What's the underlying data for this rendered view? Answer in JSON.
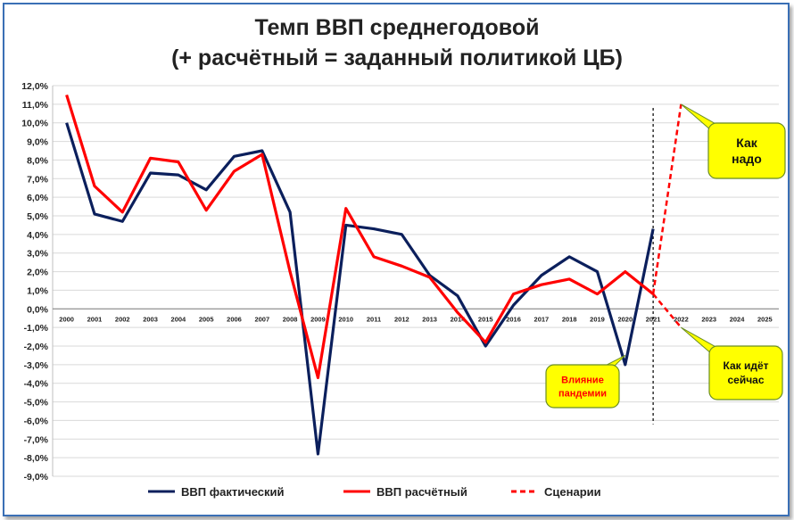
{
  "chart_data": {
    "type": "line",
    "title": "Темп ВВП среднегодовой",
    "subtitle": "(+ расчётный = заданный политикой ЦБ)",
    "x": [
      "2000",
      "2001",
      "2002",
      "2003",
      "2004",
      "2005",
      "2006",
      "2007",
      "2008",
      "2009",
      "2010",
      "2011",
      "2012",
      "2013",
      "2014",
      "2015",
      "2016",
      "2017",
      "2018",
      "2019",
      "2020",
      "2021",
      "2022",
      "2023",
      "2024",
      "2025"
    ],
    "ylim": [
      -9,
      12
    ],
    "yticks": [
      "12,0%",
      "11,0%",
      "10,0%",
      "9,0%",
      "8,0%",
      "7,0%",
      "6,0%",
      "5,0%",
      "4,0%",
      "3,0%",
      "2,0%",
      "1,0%",
      "0,0%",
      "-1,0%",
      "-2,0%",
      "-3,0%",
      "-4,0%",
      "-5,0%",
      "-6,0%",
      "-7,0%",
      "-8,0%",
      "-9,0%"
    ],
    "grid": true,
    "legend_position": "bottom",
    "series": [
      {
        "name": "ВВП фактический",
        "color": "#0b1f5c",
        "style": "solid",
        "x": [
          "2000",
          "2001",
          "2002",
          "2003",
          "2004",
          "2005",
          "2006",
          "2007",
          "2008",
          "2009",
          "2010",
          "2011",
          "2012",
          "2013",
          "2014",
          "2015",
          "2016",
          "2017",
          "2018",
          "2019",
          "2020",
          "2021"
        ],
        "values": [
          10.0,
          5.1,
          4.7,
          7.3,
          7.2,
          6.4,
          8.2,
          8.5,
          5.2,
          -7.8,
          4.5,
          4.3,
          4.0,
          1.8,
          0.7,
          -2.0,
          0.2,
          1.8,
          2.8,
          2.0,
          -3.0,
          4.3
        ]
      },
      {
        "name": "ВВП расчётный",
        "color": "#ff0000",
        "style": "solid",
        "x": [
          "2000",
          "2001",
          "2002",
          "2003",
          "2004",
          "2005",
          "2006",
          "2007",
          "2008",
          "2009",
          "2010",
          "2011",
          "2012",
          "2013",
          "2014",
          "2015",
          "2016",
          "2017",
          "2018",
          "2019",
          "2020",
          "2021"
        ],
        "values": [
          11.5,
          6.6,
          5.2,
          8.1,
          7.9,
          5.3,
          7.4,
          8.3,
          2.0,
          -3.7,
          5.4,
          2.8,
          2.3,
          1.7,
          -0.2,
          -1.8,
          0.8,
          1.3,
          1.6,
          0.8,
          2.0,
          0.8
        ]
      },
      {
        "name": "Сценарии",
        "color": "#ff0000",
        "style": "dashed",
        "segments": [
          {
            "x": [
              "2021",
              "2022"
            ],
            "values": [
              0.8,
              11.0
            ]
          },
          {
            "x": [
              "2021",
              "2022"
            ],
            "values": [
              0.8,
              -1.0
            ]
          }
        ]
      }
    ],
    "vertical_marker": {
      "x": "2021",
      "style": "dashed",
      "color": "#000000"
    },
    "annotations": [
      {
        "id": "ann_nado",
        "text_lines": [
          "Как",
          "надо"
        ],
        "color": "#111111",
        "bg": "#ffff00",
        "target_x": "2022",
        "target_y": 11.0
      },
      {
        "id": "ann_seychas",
        "text_lines": [
          "Как идёт",
          "сейчас"
        ],
        "color": "#111111",
        "bg": "#ffff00",
        "target_x": "2022",
        "target_y": -1.0
      },
      {
        "id": "ann_pandemic",
        "text_lines": [
          "Влияние",
          "пандемии"
        ],
        "color": "#ff0000",
        "bg": "#ffff00",
        "target_x": "2020",
        "target_y": -2.5
      }
    ]
  }
}
